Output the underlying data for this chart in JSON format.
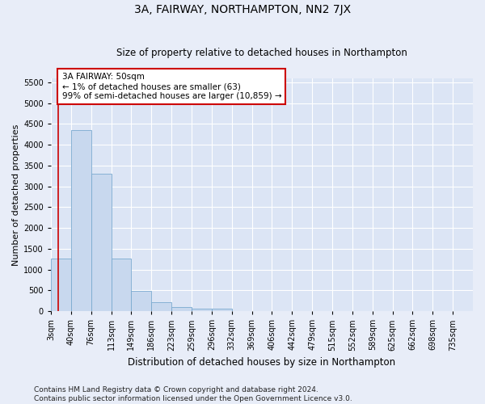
{
  "title": "3A, FAIRWAY, NORTHAMPTON, NN2 7JX",
  "subtitle": "Size of property relative to detached houses in Northampton",
  "xlabel": "Distribution of detached houses by size in Northampton",
  "ylabel": "Number of detached properties",
  "bar_color": "#c8d8ee",
  "bar_edge_color": "#7aaad0",
  "fig_bg_color": "#e8edf8",
  "axes_bg_color": "#dce5f5",
  "grid_color": "#ffffff",
  "annotation_line_color": "#cc0000",
  "annotation_box_facecolor": "#ffffff",
  "annotation_box_edgecolor": "#cc0000",
  "annotation_line1": "3A FAIRWAY: 50sqm",
  "annotation_line2": "← 1% of detached houses are smaller (63)",
  "annotation_line3": "99% of semi-detached houses are larger (10,859) →",
  "property_bin": 0.35,
  "bin_labels": [
    "3sqm",
    "40sqm",
    "76sqm",
    "113sqm",
    "149sqm",
    "186sqm",
    "223sqm",
    "259sqm",
    "296sqm",
    "332sqm",
    "369sqm",
    "406sqm",
    "442sqm",
    "479sqm",
    "515sqm",
    "552sqm",
    "589sqm",
    "625sqm",
    "662sqm",
    "698sqm",
    "735sqm"
  ],
  "values": [
    1260,
    4350,
    3300,
    1260,
    490,
    220,
    100,
    70,
    60,
    0,
    0,
    0,
    0,
    0,
    0,
    0,
    0,
    0,
    0,
    0,
    0
  ],
  "ylim": [
    0,
    5600
  ],
  "yticks": [
    0,
    500,
    1000,
    1500,
    2000,
    2500,
    3000,
    3500,
    4000,
    4500,
    5000,
    5500
  ],
  "footer_line1": "Contains HM Land Registry data © Crown copyright and database right 2024.",
  "footer_line2": "Contains public sector information licensed under the Open Government Licence v3.0.",
  "title_fontsize": 10,
  "subtitle_fontsize": 8.5,
  "xlabel_fontsize": 8.5,
  "ylabel_fontsize": 8,
  "tick_fontsize": 7,
  "annotation_fontsize": 7.5,
  "footer_fontsize": 6.5
}
